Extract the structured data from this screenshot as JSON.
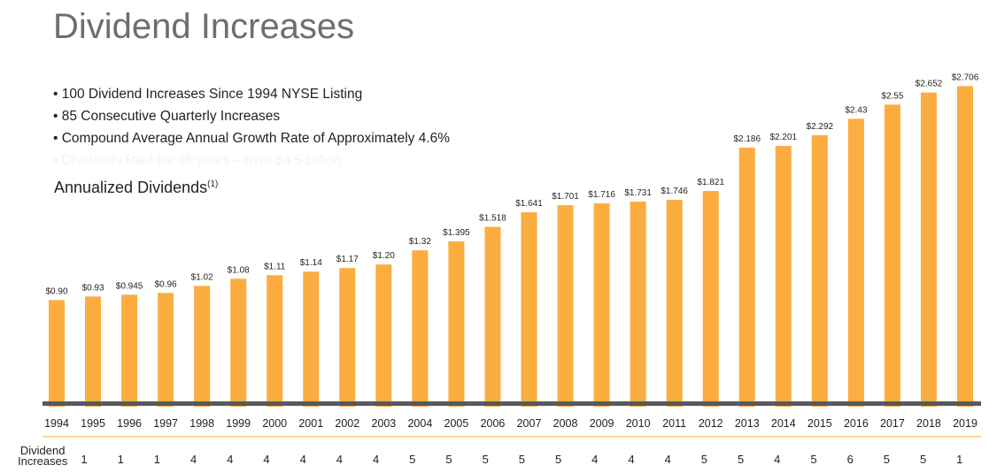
{
  "title": "Dividend Increases",
  "bullets": [
    "100 Dividend Increases Since 1994 NYSE Listing",
    "85 Consecutive Quarterly Increases",
    "Compound Average Annual Growth Rate of Approximately 4.6%",
    "Dividends Paid for 48 years – over $4.5 billion"
  ],
  "subtitle": "Annualized Dividends",
  "subtitle_note": "(1)",
  "increases_label": [
    "Dividend",
    "Increases"
  ],
  "colors": {
    "bar": "#fbad3f",
    "axis": "#58595b",
    "divider": "#fbc97a"
  },
  "chart_data": {
    "type": "bar",
    "categories": [
      "1994",
      "1995",
      "1996",
      "1997",
      "1998",
      "1999",
      "2000",
      "2001",
      "2002",
      "2003",
      "2004",
      "2005",
      "2006",
      "2007",
      "2008",
      "2009",
      "2010",
      "2011",
      "2012",
      "2013",
      "2014",
      "2015",
      "2016",
      "2017",
      "2018",
      "2019"
    ],
    "values": [
      0.9,
      0.93,
      0.945,
      0.96,
      1.02,
      1.08,
      1.11,
      1.14,
      1.17,
      1.2,
      1.32,
      1.395,
      1.518,
      1.641,
      1.701,
      1.716,
      1.731,
      1.746,
      1.821,
      2.186,
      2.201,
      2.292,
      2.43,
      2.55,
      2.652,
      2.706
    ],
    "data_labels": [
      "$0.90",
      "$0.93",
      "$0.945",
      "$0.96",
      "$1.02",
      "$1.08",
      "$1.11",
      "$1.14",
      "$1.17",
      "$1.20",
      "$1.32",
      "$1.395",
      "$1.518",
      "$1.641",
      "$1.701",
      "$1.716",
      "$1.731",
      "$1.746",
      "$1.821",
      "$2.186",
      "$2.201",
      "$2.292",
      "$2.43",
      "$2.55",
      "$2.652",
      "$2.706"
    ],
    "dividend_increases": [
      1,
      1,
      1,
      4,
      4,
      4,
      4,
      4,
      4,
      5,
      5,
      5,
      5,
      5,
      4,
      4,
      4,
      5,
      5,
      4,
      5,
      6,
      5,
      5,
      1
    ],
    "dividend_increases_all": [
      "1",
      "1",
      "1",
      "4",
      "4",
      "4",
      "4",
      "4",
      "4",
      "5",
      "5",
      "5",
      "5",
      "5",
      "4",
      "4",
      "4",
      "5",
      "5",
      "4",
      "5",
      "6",
      "5",
      "5",
      "1"
    ],
    "ylim": [
      0,
      2.8
    ],
    "grid": false,
    "legend": "none"
  }
}
